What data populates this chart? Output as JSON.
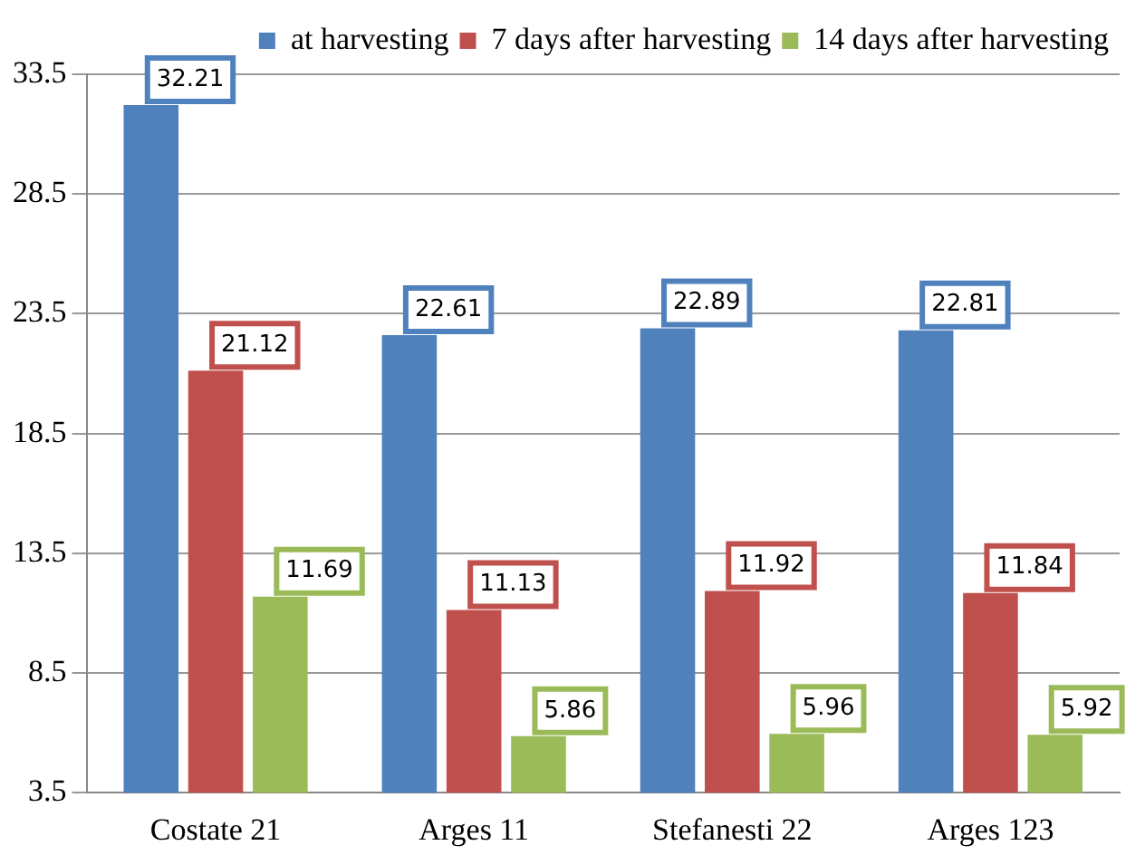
{
  "chart_data": {
    "type": "bar",
    "categories": [
      "Costate 21",
      "Arges 11",
      "Stefanesti 22",
      "Arges 123"
    ],
    "series": [
      {
        "name": "at harvesting",
        "color": "#4f81bd",
        "values": [
          32.21,
          22.61,
          22.89,
          22.81
        ]
      },
      {
        "name": "7 days after harvesting",
        "color": "#c0504d",
        "values": [
          21.12,
          11.13,
          11.92,
          11.84
        ]
      },
      {
        "name": "14 days after harvesting",
        "color": "#9bbb59",
        "values": [
          11.69,
          5.86,
          5.96,
          5.92
        ]
      }
    ],
    "ylim": [
      3.5,
      33.5
    ],
    "yticks": [
      3.5,
      8.5,
      13.5,
      18.5,
      23.5,
      28.5,
      33.5
    ],
    "grid": "y",
    "legend": "top right",
    "data_labels": true
  }
}
